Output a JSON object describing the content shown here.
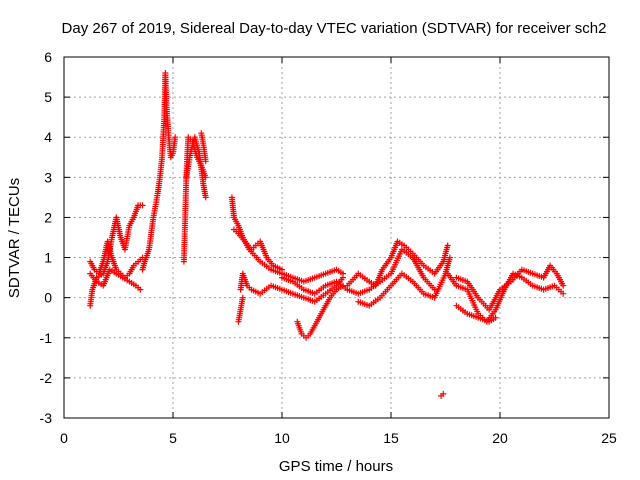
{
  "chart_data": {
    "type": "scatter",
    "title": "Day 267 of 2019, Sidereal Day-to-day VTEC variation (SDTVAR) for receiver sch2",
    "xlabel": "GPS time / hours",
    "ylabel": "SDTVAR / TECUs",
    "xlim": [
      0,
      25
    ],
    "ylim": [
      -3,
      6
    ],
    "xticks": [
      0,
      5,
      10,
      15,
      20,
      25
    ],
    "yticks": [
      -3,
      -2,
      -1,
      0,
      1,
      2,
      3,
      4,
      5,
      6
    ],
    "xtick_labels": [
      "0",
      "5",
      "10",
      "15",
      "20",
      "25"
    ],
    "ytick_labels": [
      "-3",
      "-2",
      "-1",
      "0",
      "1",
      "2",
      "3",
      "4",
      "5",
      "6"
    ],
    "grid": true,
    "marker": "+",
    "color": "#ff0000",
    "series": [
      {
        "name": "SDTVAR",
        "tracks": [
          [
            [
              1.2,
              -0.2
            ],
            [
              1.3,
              0.2
            ],
            [
              1.5,
              0.5
            ],
            [
              1.8,
              0.6
            ],
            [
              2.0,
              0.9
            ],
            [
              2.2,
              1.5
            ],
            [
              2.4,
              2.0
            ],
            [
              2.6,
              1.5
            ],
            [
              2.8,
              1.2
            ],
            [
              3.0,
              1.8
            ],
            [
              3.2,
              2.0
            ],
            [
              3.4,
              2.3
            ],
            [
              3.6,
              2.3
            ]
          ],
          [
            [
              1.2,
              0.9
            ],
            [
              1.4,
              0.7
            ],
            [
              1.6,
              0.6
            ],
            [
              1.8,
              0.9
            ],
            [
              2.0,
              1.4
            ],
            [
              2.2,
              1.0
            ],
            [
              2.4,
              0.7
            ],
            [
              2.6,
              0.6
            ],
            [
              2.8,
              0.5
            ],
            [
              3.0,
              0.6
            ],
            [
              3.2,
              0.8
            ],
            [
              3.4,
              0.9
            ],
            [
              3.6,
              1.0
            ]
          ],
          [
            [
              1.2,
              0.6
            ],
            [
              1.5,
              0.4
            ],
            [
              1.8,
              0.3
            ],
            [
              2.1,
              0.7
            ],
            [
              2.4,
              0.6
            ],
            [
              2.7,
              0.5
            ],
            [
              3.0,
              0.4
            ],
            [
              3.3,
              0.3
            ],
            [
              3.5,
              0.2
            ]
          ],
          [
            [
              3.6,
              0.7
            ],
            [
              3.7,
              0.9
            ],
            [
              3.9,
              1.2
            ],
            [
              4.1,
              2.0
            ],
            [
              4.3,
              2.6
            ],
            [
              4.4,
              3.0
            ],
            [
              4.5,
              3.5
            ],
            [
              4.6,
              4.5
            ],
            [
              4.65,
              5.6
            ],
            [
              4.7,
              4.8
            ],
            [
              4.8,
              4.0
            ],
            [
              4.9,
              3.5
            ],
            [
              5.0,
              3.6
            ],
            [
              5.1,
              4.0
            ]
          ],
          [
            [
              5.5,
              0.9
            ],
            [
              5.55,
              1.8
            ],
            [
              5.6,
              2.8
            ],
            [
              5.65,
              3.5
            ],
            [
              5.7,
              4.0
            ],
            [
              5.9,
              3.9
            ],
            [
              6.1,
              3.5
            ],
            [
              6.3,
              3.3
            ],
            [
              6.5,
              3.0
            ]
          ],
          [
            [
              5.6,
              3.0
            ],
            [
              5.8,
              3.6
            ],
            [
              6.0,
              4.0
            ],
            [
              6.2,
              3.6
            ],
            [
              6.3,
              3.2
            ],
            [
              6.4,
              2.8
            ],
            [
              6.5,
              2.5
            ]
          ],
          [
            [
              6.3,
              4.1
            ],
            [
              6.4,
              3.8
            ],
            [
              6.5,
              3.4
            ]
          ],
          [
            [
              7.7,
              2.5
            ],
            [
              7.8,
              2.0
            ],
            [
              8.0,
              1.8
            ],
            [
              8.2,
              1.5
            ],
            [
              8.5,
              1.2
            ],
            [
              9.0,
              0.9
            ],
            [
              9.5,
              0.7
            ],
            [
              10.0,
              0.6
            ],
            [
              10.5,
              0.5
            ],
            [
              11.0,
              0.4
            ],
            [
              11.5,
              0.5
            ],
            [
              12.0,
              0.6
            ],
            [
              12.5,
              0.7
            ],
            [
              12.8,
              0.6
            ]
          ],
          [
            [
              7.8,
              1.7
            ],
            [
              8.0,
              1.6
            ],
            [
              8.3,
              1.4
            ],
            [
              8.6,
              1.2
            ],
            [
              8.8,
              1.3
            ],
            [
              9.0,
              1.4
            ],
            [
              9.3,
              1.0
            ],
            [
              9.6,
              0.8
            ],
            [
              10.0,
              0.7
            ]
          ],
          [
            [
              8.1,
              0.2
            ],
            [
              8.2,
              0.6
            ],
            [
              8.4,
              0.3
            ],
            [
              8.6,
              0.2
            ],
            [
              9.0,
              0.1
            ],
            [
              9.5,
              0.3
            ],
            [
              10.0,
              0.2
            ],
            [
              10.5,
              0.1
            ],
            [
              11.0,
              0.0
            ],
            [
              11.5,
              -0.1
            ],
            [
              12.0,
              0.1
            ],
            [
              12.5,
              0.3
            ],
            [
              12.8,
              0.5
            ]
          ],
          [
            [
              8.0,
              -0.6
            ],
            [
              8.1,
              -0.3
            ],
            [
              8.2,
              0.0
            ]
          ],
          [
            [
              10.7,
              -0.6
            ],
            [
              10.9,
              -0.9
            ],
            [
              11.1,
              -1.0
            ],
            [
              11.3,
              -0.9
            ],
            [
              11.6,
              -0.6
            ],
            [
              11.9,
              -0.3
            ],
            [
              12.2,
              0.0
            ],
            [
              12.5,
              0.2
            ],
            [
              12.8,
              0.3
            ]
          ],
          [
            [
              10.0,
              0.5
            ],
            [
              10.5,
              0.4
            ],
            [
              11.0,
              0.2
            ],
            [
              11.5,
              0.1
            ],
            [
              12.0,
              0.3
            ],
            [
              12.5,
              0.4
            ],
            [
              13.0,
              0.2
            ],
            [
              13.5,
              0.1
            ],
            [
              14.0,
              0.2
            ],
            [
              14.5,
              0.4
            ],
            [
              15.0,
              0.6
            ],
            [
              15.5,
              1.2
            ],
            [
              16.0,
              1.0
            ],
            [
              16.5,
              0.5
            ],
            [
              17.0,
              0.2
            ]
          ],
          [
            [
              13.0,
              0.3
            ],
            [
              13.5,
              0.6
            ],
            [
              14.0,
              0.4
            ],
            [
              14.3,
              0.3
            ],
            [
              14.6,
              0.7
            ],
            [
              15.0,
              1.0
            ],
            [
              15.3,
              1.4
            ],
            [
              15.6,
              1.3
            ],
            [
              16.0,
              1.1
            ],
            [
              16.5,
              0.8
            ],
            [
              17.0,
              0.6
            ],
            [
              17.4,
              0.9
            ],
            [
              17.6,
              1.3
            ]
          ],
          [
            [
              13.5,
              -0.1
            ],
            [
              14.0,
              -0.2
            ],
            [
              14.5,
              0.0
            ],
            [
              15.0,
              0.3
            ],
            [
              15.5,
              0.6
            ],
            [
              16.0,
              0.4
            ],
            [
              16.5,
              0.1
            ],
            [
              17.0,
              0.0
            ],
            [
              17.5,
              0.6
            ],
            [
              17.7,
              1.0
            ]
          ],
          [
            [
              17.3,
              -2.45
            ],
            [
              17.4,
              -2.4
            ]
          ],
          [
            [
              17.6,
              0.6
            ],
            [
              18.0,
              0.3
            ],
            [
              18.5,
              0.2
            ],
            [
              19.0,
              -0.4
            ],
            [
              19.4,
              -0.6
            ],
            [
              19.8,
              -0.3
            ],
            [
              20.2,
              0.2
            ],
            [
              20.6,
              0.6
            ],
            [
              21.0,
              0.5
            ],
            [
              21.5,
              0.3
            ],
            [
              22.0,
              0.2
            ],
            [
              22.5,
              0.3
            ],
            [
              22.9,
              0.1
            ]
          ],
          [
            [
              18.0,
              0.5
            ],
            [
              18.5,
              0.4
            ],
            [
              19.0,
              0.0
            ],
            [
              19.5,
              -0.3
            ],
            [
              20.0,
              0.2
            ],
            [
              20.5,
              0.4
            ],
            [
              21.0,
              0.7
            ],
            [
              21.5,
              0.6
            ],
            [
              22.0,
              0.5
            ],
            [
              22.3,
              0.8
            ],
            [
              22.6,
              0.6
            ],
            [
              22.9,
              0.3
            ]
          ],
          [
            [
              18.0,
              -0.2
            ],
            [
              18.5,
              -0.4
            ],
            [
              19.0,
              -0.5
            ],
            [
              19.5,
              -0.6
            ],
            [
              19.8,
              -0.5
            ]
          ]
        ]
      }
    ]
  }
}
